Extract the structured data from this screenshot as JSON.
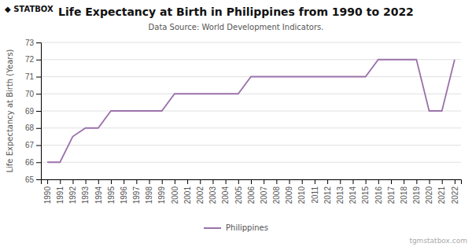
{
  "chart_data": {
    "type": "line",
    "title": "Life Expectancy at Birth in Philippines from 1990 to 2022",
    "subtitle": "Data Source: World Development Indicators.",
    "y_label": "Life Expectancy at Birth (Years)",
    "annotations": [
      "◆ STATBOX",
      "tgmstatbox.com"
    ],
    "x": [
      1990,
      1991,
      1992,
      1993,
      1994,
      1995,
      1996,
      1997,
      1998,
      1999,
      2000,
      2001,
      2002,
      2003,
      2004,
      2005,
      2006,
      2007,
      2008,
      2009,
      2010,
      2011,
      2012,
      2013,
      2014,
      2015,
      2016,
      2017,
      2018,
      2019,
      2020,
      2021,
      2022
    ],
    "series": [
      {
        "name": "Philippines",
        "color": "#9b72aa",
        "values": [
          66.0,
          66.0,
          67.5,
          68.0,
          68.0,
          69.0,
          69.0,
          69.0,
          69.0,
          69.0,
          70.0,
          70.0,
          70.0,
          70.0,
          70.0,
          70.0,
          71.0,
          71.0,
          71.0,
          71.0,
          71.0,
          71.0,
          71.0,
          71.0,
          71.0,
          71.0,
          72.0,
          72.0,
          72.0,
          72.0,
          69.0,
          69.0,
          72.0
        ]
      }
    ],
    "xlim": [
      1989.5,
      2022.5
    ],
    "xticks": [
      1990,
      1991,
      1992,
      1993,
      1994,
      1995,
      1996,
      1997,
      1998,
      1999,
      2000,
      2001,
      2002,
      2003,
      2004,
      2005,
      2006,
      2007,
      2008,
      2009,
      2010,
      2011,
      2012,
      2013,
      2014,
      2015,
      2016,
      2017,
      2018,
      2019,
      2020,
      2021,
      2022
    ],
    "ylim": [
      65,
      73
    ],
    "yticks": [
      65,
      66,
      67,
      68,
      69,
      70,
      71,
      72,
      73
    ],
    "grid": true,
    "legend": "bottom"
  }
}
